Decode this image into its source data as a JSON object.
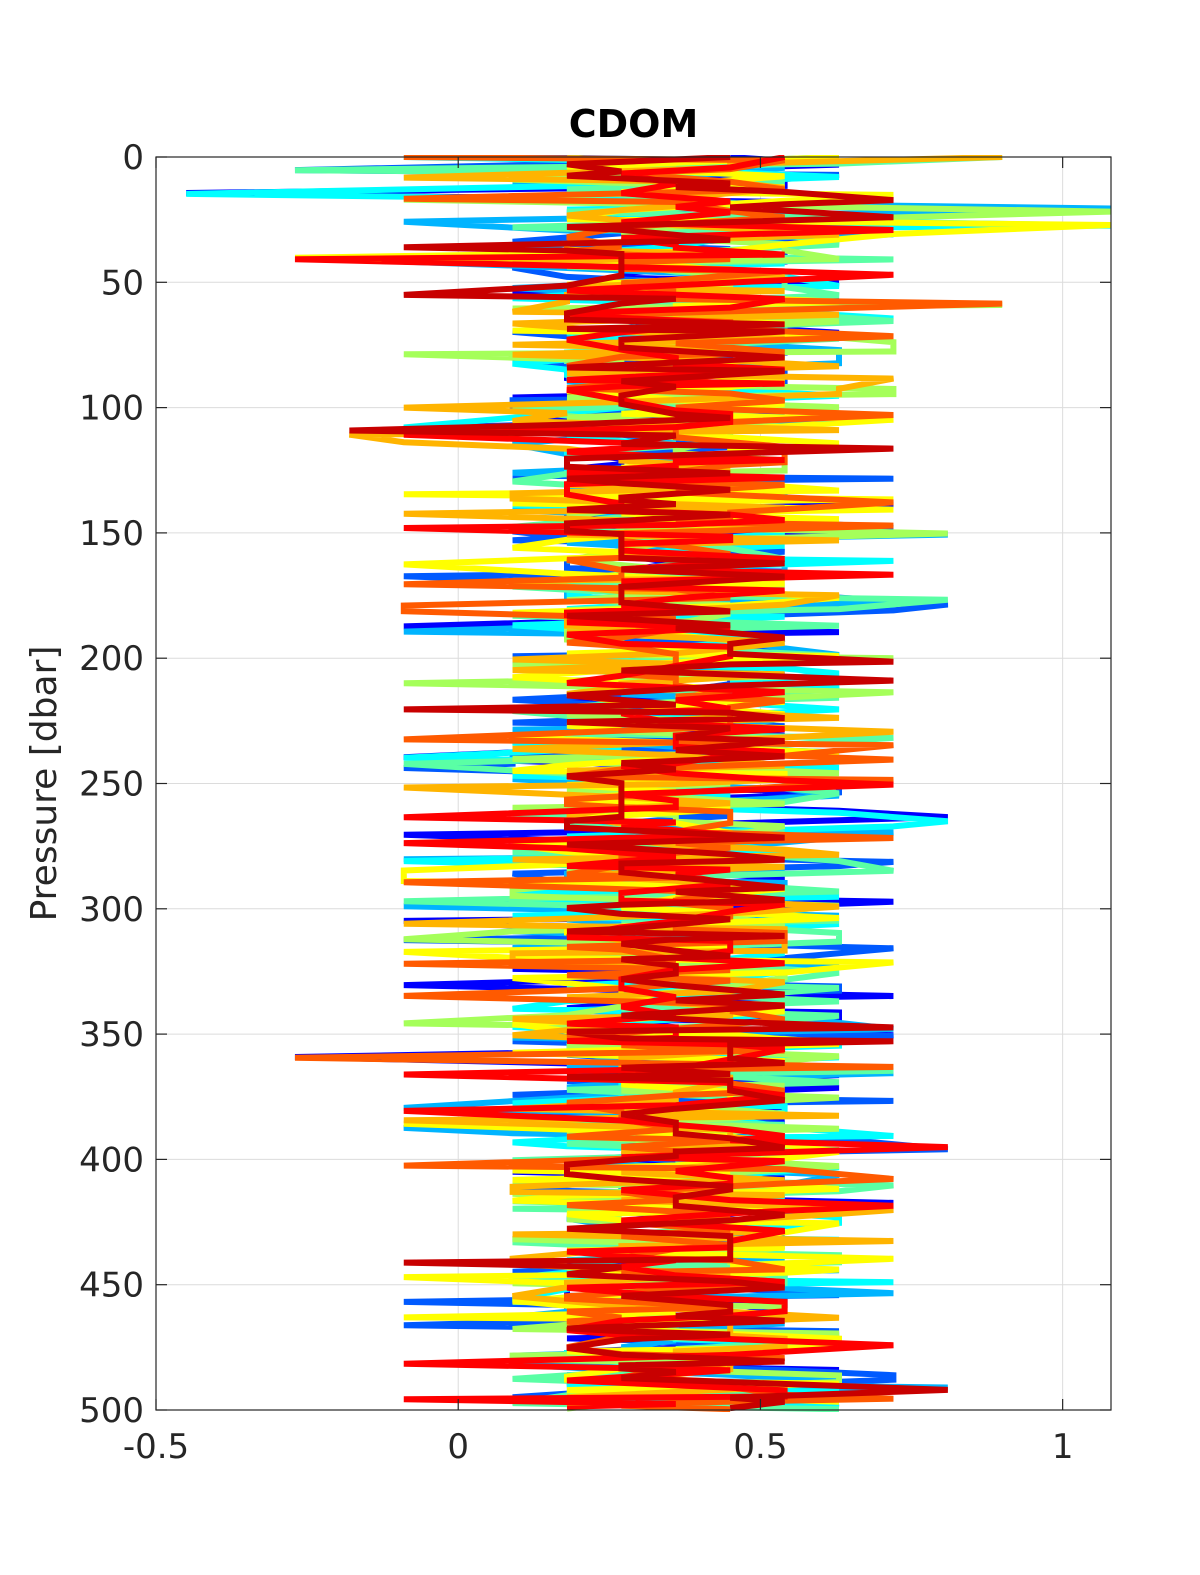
{
  "chart_data": {
    "type": "line",
    "title": "CDOM",
    "xlabel": "",
    "ylabel": "Pressure [dbar]",
    "xlim": [
      -0.5,
      1.08
    ],
    "ylim": [
      0,
      500
    ],
    "y_reversed": true,
    "grid": true,
    "legend": "none",
    "x_ticks": [
      -0.5,
      0,
      0.5,
      1
    ],
    "x_tick_labels": [
      "-0.5",
      "0",
      "0.5",
      "1"
    ],
    "y_ticks": [
      0,
      50,
      100,
      150,
      200,
      250,
      300,
      350,
      400,
      450,
      500
    ],
    "y_tick_labels": [
      "0",
      "50",
      "100",
      "150",
      "200",
      "250",
      "300",
      "350",
      "400",
      "450",
      "500"
    ],
    "profile_count": 11,
    "profile_colors": [
      "#0000ff",
      "#005aff",
      "#00b4ff",
      "#00ffff",
      "#5affa5",
      "#a5ff5a",
      "#ffff00",
      "#ffb400",
      "#ff5a00",
      "#ff0000",
      "#c80000"
    ],
    "quantization_step": 0.09,
    "typical_range": [
      0.09,
      0.63
    ],
    "notable_excursions": [
      {
        "pressure": 14,
        "value": -0.45
      },
      {
        "pressure": 4,
        "value": -0.27
      },
      {
        "pressure": 22,
        "value": 1.08
      },
      {
        "pressure": 28,
        "value": 1.08
      },
      {
        "pressure": 1,
        "value": 0.9
      },
      {
        "pressure": 58,
        "value": 0.9
      },
      {
        "pressure": 40,
        "value": -0.27
      },
      {
        "pressure": 110,
        "value": -0.18
      },
      {
        "pressure": 360,
        "value": -0.27
      },
      {
        "pressure": 395,
        "value": 0.81
      },
      {
        "pressure": 492,
        "value": 0.81
      },
      {
        "pressure": 264,
        "value": 0.81
      },
      {
        "pressure": 178,
        "value": 0.81
      },
      {
        "pressure": 150,
        "value": 0.81
      }
    ]
  }
}
